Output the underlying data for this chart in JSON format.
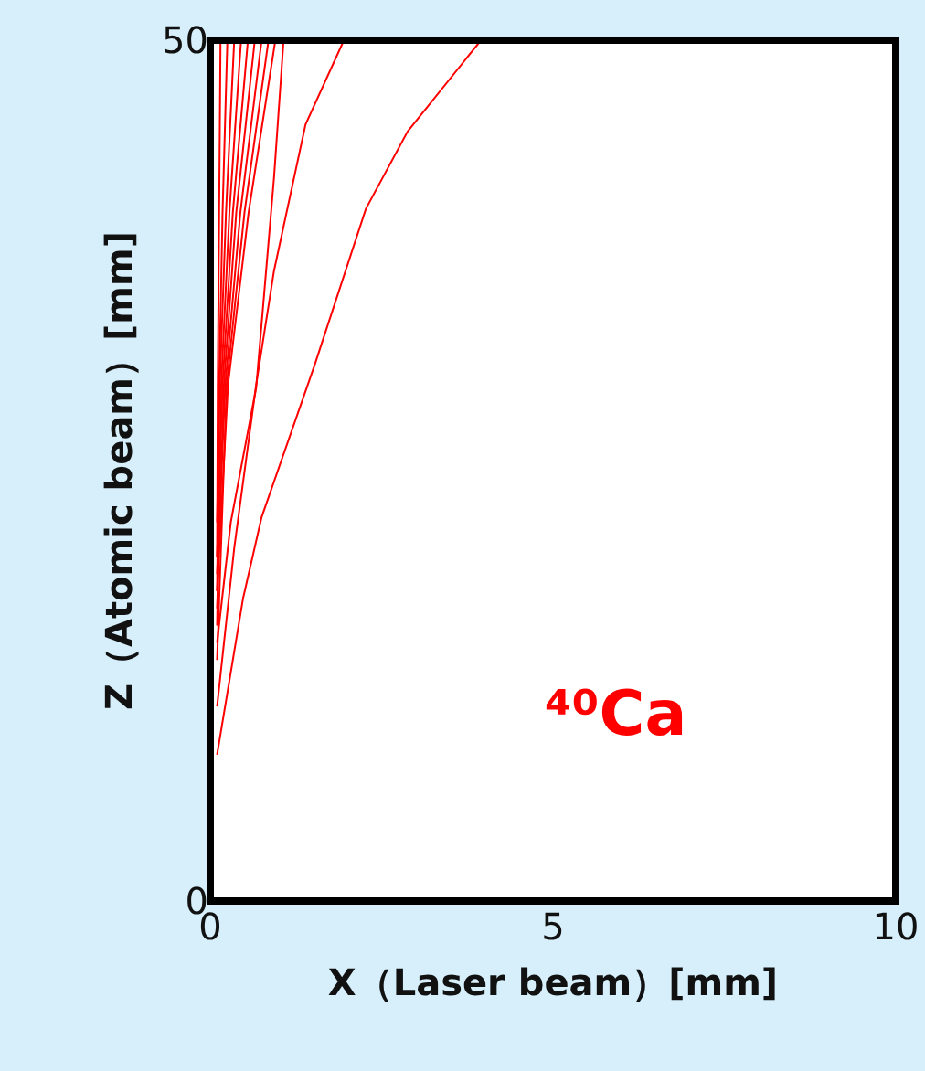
{
  "chart_data": {
    "type": "line",
    "xlabel": "X（Laser beam）[mm]",
    "ylabel": "Z（Atomic beam）[mm]",
    "xlim": [
      0,
      10
    ],
    "xticks": [
      0,
      5,
      10
    ],
    "ylim": [
      0,
      50
    ],
    "yticks": [
      0,
      50
    ],
    "marker": "none",
    "line_style": "solid",
    "annotations": [
      "⁴⁰Ca"
    ],
    "series": [
      {
        "color": "#ff0000",
        "x": [
          0.1,
          0.48,
          0.75,
          1.52,
          2.27,
          2.88,
          3.95
        ],
        "values": [
          8.5,
          17.6,
          22.3,
          31.1,
          40.2,
          44.7,
          50
        ]
      },
      {
        "color": "#ff0000",
        "x": [
          0.1,
          0.35,
          0.67,
          0.93,
          1.39,
          1.95
        ],
        "values": [
          11.3,
          20.5,
          30,
          36.6,
          45.1,
          50
        ]
      },
      {
        "color": "#ff0000",
        "x": [
          0.1,
          0.3,
          0.67,
          0.93,
          1.07
        ],
        "values": [
          15,
          22,
          29.8,
          42,
          50
        ]
      },
      {
        "color": "#ff0000",
        "x": [
          0.1,
          0.11,
          0.13,
          0.15
        ],
        "values": [
          20,
          30,
          40,
          50
        ]
      },
      {
        "color": "#ff0000",
        "x": [
          0.1,
          0.13,
          0.18,
          0.25
        ],
        "values": [
          18,
          30,
          40,
          50
        ]
      },
      {
        "color": "#ff0000",
        "x": [
          0.1,
          0.14,
          0.23,
          0.35
        ],
        "values": [
          22,
          30,
          40,
          50
        ]
      },
      {
        "color": "#ff0000",
        "x": [
          0.1,
          0.16,
          0.28,
          0.45
        ],
        "values": [
          16,
          30,
          40,
          50
        ]
      },
      {
        "color": "#ff0000",
        "x": [
          0.1,
          0.18,
          0.33,
          0.55
        ],
        "values": [
          20,
          30,
          40,
          50
        ]
      },
      {
        "color": "#ff0000",
        "x": [
          0.1,
          0.2,
          0.38,
          0.65
        ],
        "values": [
          17,
          30,
          40,
          50
        ]
      },
      {
        "color": "#ff0000",
        "x": [
          0.1,
          0.22,
          0.44,
          0.75
        ],
        "values": [
          19,
          30,
          40,
          50
        ]
      },
      {
        "color": "#ff0000",
        "x": [
          0.1,
          0.24,
          0.5,
          0.85
        ],
        "values": [
          14,
          30,
          40,
          50
        ]
      },
      {
        "color": "#ff0000",
        "x": [
          0.1,
          0.26,
          0.56,
          0.95
        ],
        "values": [
          18,
          30,
          40,
          50
        ]
      }
    ]
  }
}
